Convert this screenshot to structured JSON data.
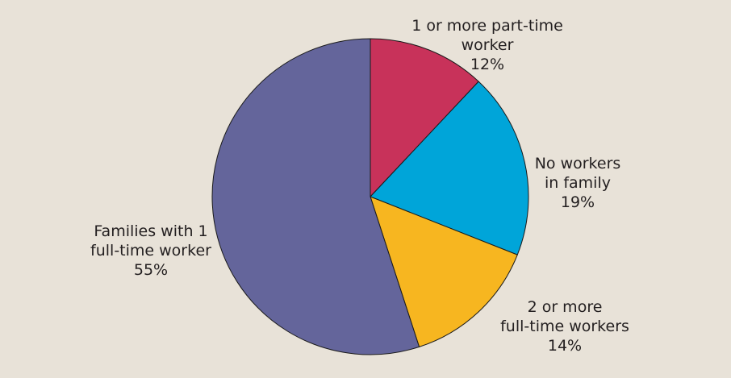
{
  "chart_data": {
    "type": "pie",
    "start_angle_deg": 0,
    "direction": "clockwise",
    "background": "#e8e2d8",
    "slices": [
      {
        "label_lines": [
          "1 or more part-time",
          "worker"
        ],
        "value_label": "12%",
        "value": 12,
        "color": "#c8325a"
      },
      {
        "label_lines": [
          "No workers",
          "in family"
        ],
        "value_label": "19%",
        "value": 19,
        "color": "#00a5d9"
      },
      {
        "label_lines": [
          "2 or more",
          "full-time workers"
        ],
        "value_label": "14%",
        "value": 14,
        "color": "#f7b620"
      },
      {
        "label_lines": [
          "Families with 1",
          "full-time worker"
        ],
        "value_label": "55%",
        "value": 55,
        "color": "#64659b"
      }
    ]
  }
}
